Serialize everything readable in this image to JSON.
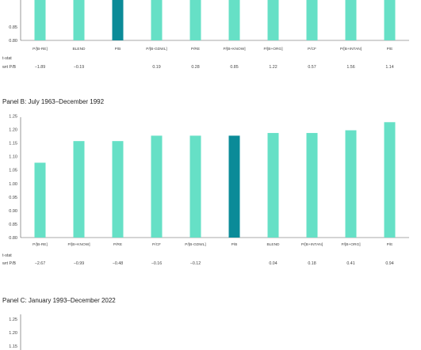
{
  "colors": {
    "bar": "#66e0c6",
    "highlight": "#0b8b98",
    "axis": "#555555"
  },
  "row_label_line1": "t-stat",
  "row_label_line2": "wrt P/B",
  "chart_data": [
    {
      "type": "bar",
      "title": "",
      "categories": [
        "P/[B-RE]",
        "BLEND",
        "P/B",
        "P/[B-GDWL]",
        "P/RE",
        "P/[B+KNOW]",
        "P/[B+ORG]",
        "P/CF",
        "P/[B+INTAN]",
        "P/E"
      ],
      "values": [
        1.25,
        1.25,
        1.25,
        1.25,
        1.25,
        1.25,
        1.25,
        1.25,
        1.25,
        1.25
      ],
      "highlight": "P/B",
      "t_stats": [
        "−1.89",
        "−0.19",
        "",
        "0.19",
        "0.28",
        "0.85",
        "1.22",
        "0.57",
        "1.56",
        "1.14"
      ],
      "yticks": [
        "0.85",
        "0.80"
      ],
      "ylim": [
        0.8,
        0.91
      ]
    },
    {
      "type": "bar",
      "title": "Panel B: July 1963–December 1992",
      "categories": [
        "P/[B-RE]",
        "P/[B+KNOW]",
        "P/RE",
        "P/CF",
        "P/[B-GDWL]",
        "P/B",
        "BLEND",
        "P/[B+INTAN]",
        "P/[B+ORG]",
        "P/E"
      ],
      "values": [
        1.077,
        1.157,
        1.157,
        1.177,
        1.177,
        1.177,
        1.187,
        1.187,
        1.197,
        1.227
      ],
      "highlight": "P/B",
      "t_stats": [
        "−2.67",
        "−0.99",
        "−0.48",
        "−0.16",
        "−0.12",
        "",
        "0.04",
        "0.18",
        "0.41",
        "0.94"
      ],
      "yticks": [
        "1.25",
        "1.20",
        "1.15",
        "1.10",
        "1.05",
        "1.00",
        "0.95",
        "0.90",
        "0.85",
        "0.80"
      ],
      "ylim": [
        0.8,
        1.25
      ]
    },
    {
      "type": "bar",
      "title": "Panel C: January 1993–December 2022",
      "categories": [],
      "values": [],
      "yticks": [
        "1.25",
        "1.20",
        "1.15"
      ],
      "ylim": [
        0.8,
        1.25
      ]
    }
  ]
}
